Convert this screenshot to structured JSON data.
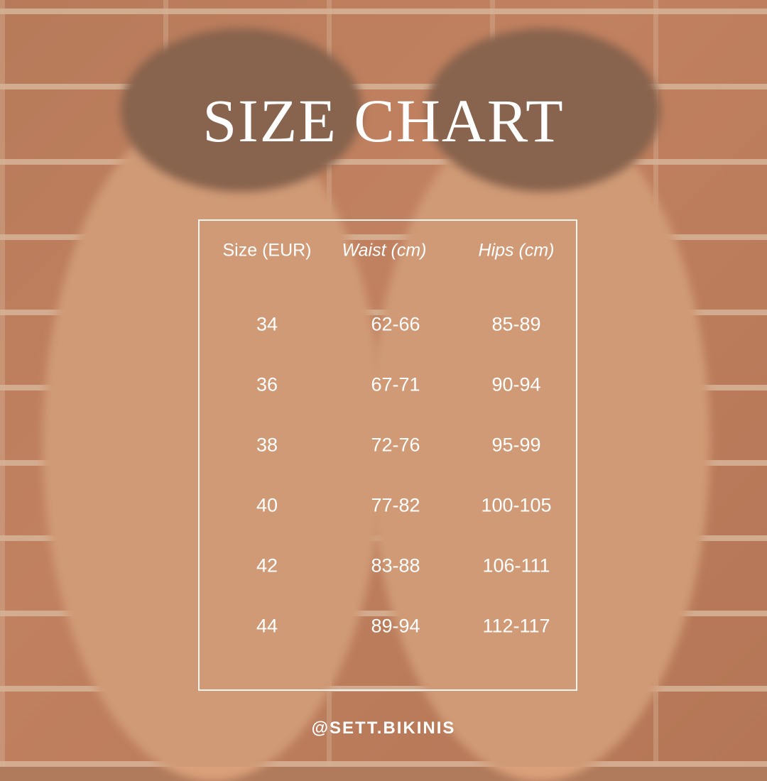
{
  "title": "SIZE CHART",
  "table": {
    "headers": [
      "Size (EUR)",
      "Waist (cm)",
      "Hips (cm)"
    ],
    "rows": [
      [
        "34",
        "62-66",
        "85-89"
      ],
      [
        "36",
        "67-71",
        "90-94"
      ],
      [
        "38",
        "72-76",
        "95-99"
      ],
      [
        "40",
        "77-82",
        "100-105"
      ],
      [
        "42",
        "83-88",
        "106-111"
      ],
      [
        "44",
        "89-94",
        "112-117"
      ]
    ]
  },
  "handle": "@SETT.BIKINIS"
}
